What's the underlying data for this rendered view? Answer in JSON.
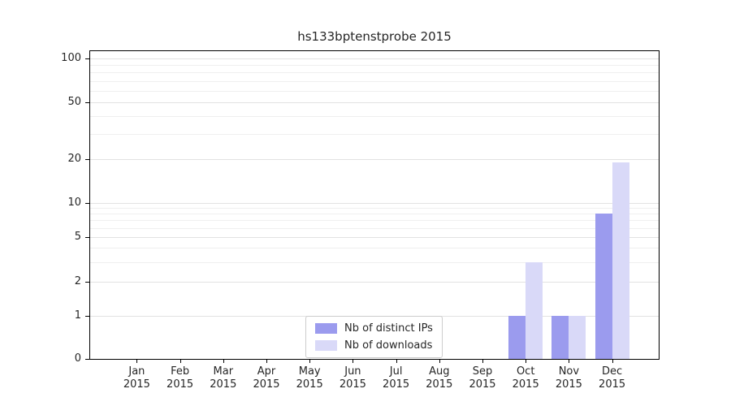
{
  "chart_data": {
    "type": "bar",
    "title": "hs133bptenstprobe 2015",
    "categories": [
      {
        "month": "Jan",
        "year": "2015"
      },
      {
        "month": "Feb",
        "year": "2015"
      },
      {
        "month": "Mar",
        "year": "2015"
      },
      {
        "month": "Apr",
        "year": "2015"
      },
      {
        "month": "May",
        "year": "2015"
      },
      {
        "month": "Jun",
        "year": "2015"
      },
      {
        "month": "Jul",
        "year": "2015"
      },
      {
        "month": "Aug",
        "year": "2015"
      },
      {
        "month": "Sep",
        "year": "2015"
      },
      {
        "month": "Oct",
        "year": "2015"
      },
      {
        "month": "Nov",
        "year": "2015"
      },
      {
        "month": "Dec",
        "year": "2015"
      }
    ],
    "series": [
      {
        "name": "Nb of distinct IPs",
        "color": "#9b9bee",
        "values": [
          0,
          0,
          0,
          0,
          0,
          0,
          0,
          0,
          0,
          1,
          1,
          8
        ]
      },
      {
        "name": "Nb of downloads",
        "color": "#d9d9f8",
        "values": [
          0,
          0,
          0,
          0,
          0,
          0,
          0,
          0,
          0,
          3,
          1,
          19
        ]
      }
    ],
    "y_axis": {
      "scale": "symlog",
      "major_ticks": [
        0,
        1,
        2,
        5,
        10,
        20,
        50,
        100
      ],
      "minor_ticks": [
        3,
        4,
        6,
        7,
        8,
        9,
        30,
        40,
        60,
        70,
        80,
        90
      ],
      "range": [
        0,
        115
      ]
    },
    "x_axis": {
      "label_lines": 2
    },
    "legend": {
      "position": "lower-center-inside",
      "entries": [
        "Nb of distinct IPs",
        "Nb of downloads"
      ]
    },
    "grid": true,
    "colors": {
      "major_grid": "#e2e2e2",
      "minor_grid": "#efefef",
      "spine": "#000000",
      "background": "#ffffff"
    }
  }
}
